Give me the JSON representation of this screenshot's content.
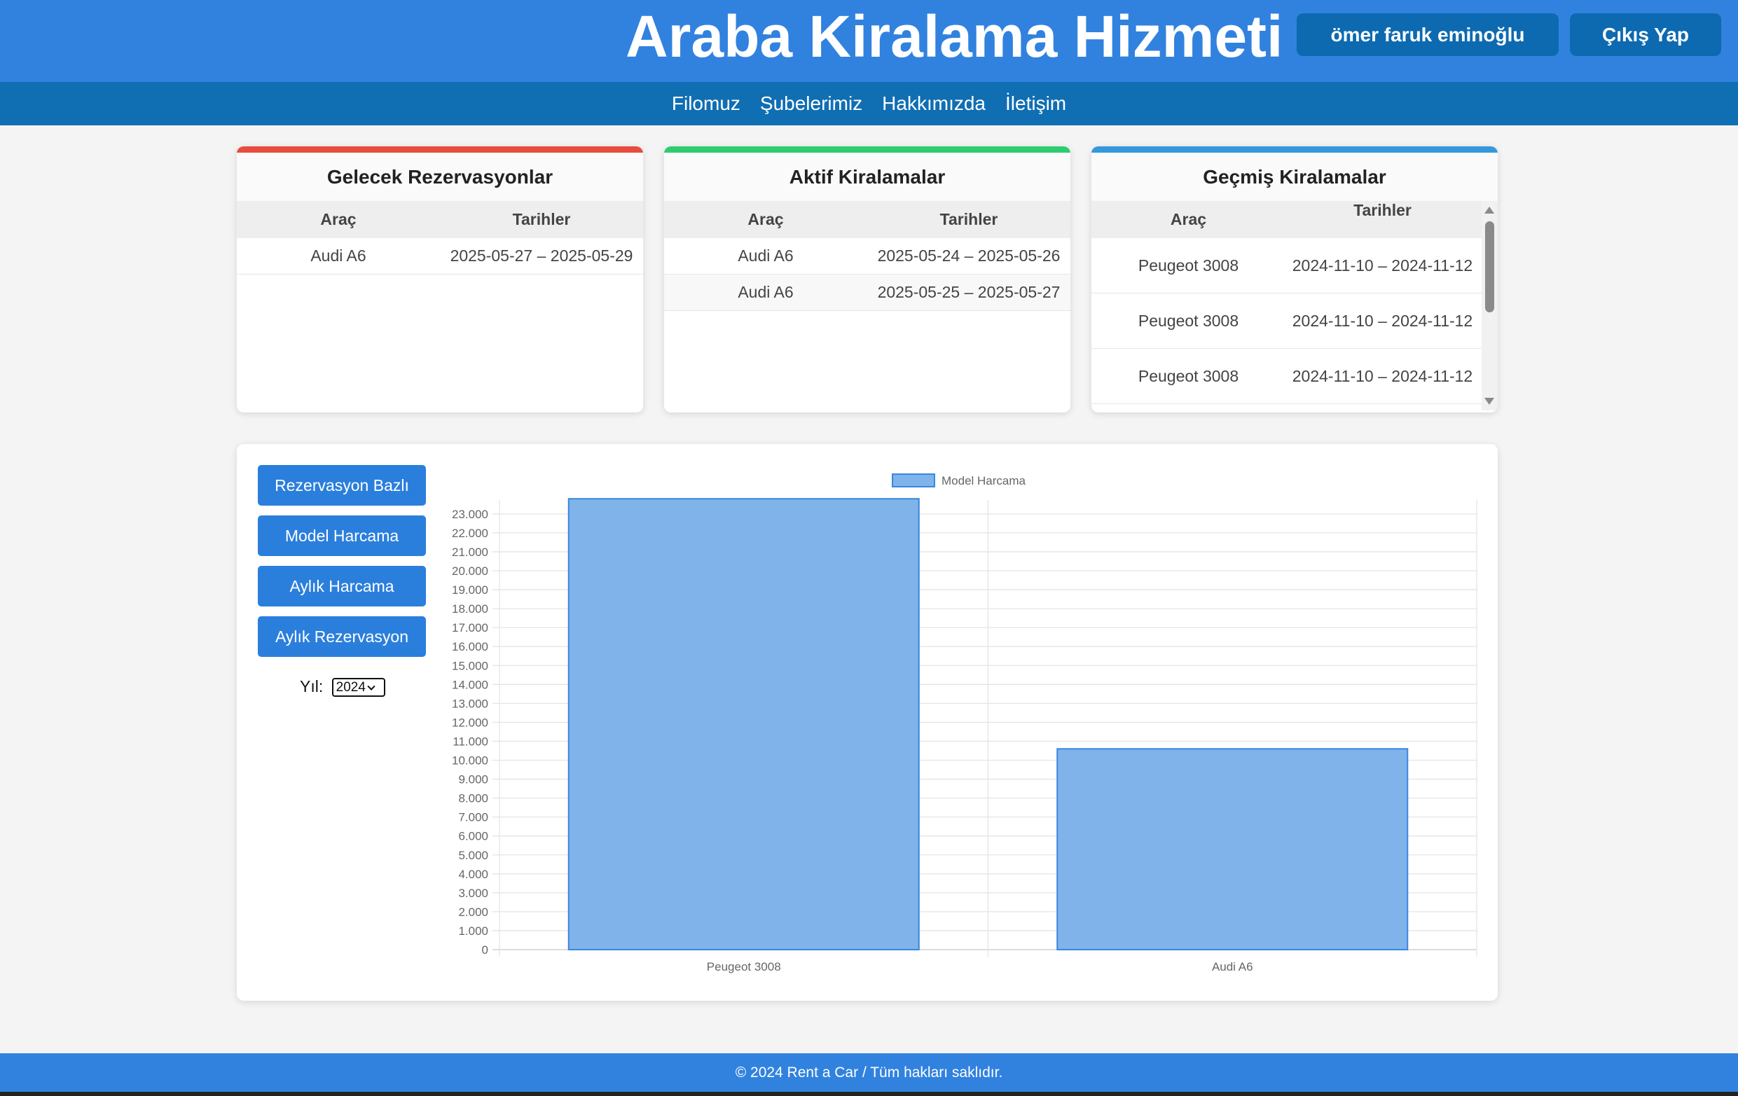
{
  "header": {
    "title": "Araba Kiralama Hizmeti",
    "user_name": "ömer faruk eminoğlu",
    "logout_label": "Çıkış Yap",
    "color": "#3182df"
  },
  "nav": {
    "items": [
      "Filomuz",
      "Şubelerimiz",
      "Hakkımızda",
      "İletişim"
    ]
  },
  "cards": {
    "upcoming": {
      "title": "Gelecek Rezervasyonlar",
      "accent": "#e74c3c",
      "col_car": "Araç",
      "col_dates": "Tarihler",
      "rows": [
        {
          "car": "Audi A6",
          "dates": "2025-05-27 – 2025-05-29"
        }
      ]
    },
    "active": {
      "title": "Aktif Kiralamalar",
      "accent": "#2ecc71",
      "col_car": "Araç",
      "col_dates": "Tarihler",
      "rows": [
        {
          "car": "Audi A6",
          "dates": "2025-05-24 – 2025-05-26"
        },
        {
          "car": "Audi A6",
          "dates": "2025-05-25 – 2025-05-27"
        }
      ]
    },
    "past": {
      "title": "Geçmiş Kiralamalar",
      "accent": "#3498db",
      "col_car": "Araç",
      "col_dates": "Tarihler",
      "rows": [
        {
          "car": "Peugeot 3008",
          "dates": "2024-11-10 – 2024-11-12"
        },
        {
          "car": "Peugeot 3008",
          "dates": "2024-11-10 – 2024-11-12"
        },
        {
          "car": "Peugeot 3008",
          "dates": "2024-11-10 – 2024-11-12"
        }
      ]
    }
  },
  "controls": {
    "buttons": [
      "Rezervasyon Bazlı",
      "Model Harcama",
      "Aylık Harcama",
      "Aylık Rezervasyon"
    ],
    "year_label": "Yıl:",
    "year_value": "2024"
  },
  "chart_data": {
    "type": "bar",
    "categories": [
      "Peugeot 3008",
      "Audi A6"
    ],
    "series": [
      {
        "name": "Model Harcama",
        "values": [
          23800,
          10600
        ],
        "color": "#80b3ea",
        "border": "#3a86e0"
      }
    ],
    "ylim": [
      0,
      23000
    ],
    "ytick_step": 1000,
    "yticks": [
      "0",
      "1.000",
      "2.000",
      "3.000",
      "4.000",
      "5.000",
      "6.000",
      "7.000",
      "8.000",
      "9.000",
      "10.000",
      "11.000",
      "12.000",
      "13.000",
      "14.000",
      "15.000",
      "16.000",
      "17.000",
      "18.000",
      "19.000",
      "20.000",
      "21.000",
      "22.000",
      "23.000"
    ],
    "legend": "top",
    "grid": true
  },
  "footer": {
    "text": "© 2024 Rent a Car / Tüm hakları saklıdır."
  }
}
